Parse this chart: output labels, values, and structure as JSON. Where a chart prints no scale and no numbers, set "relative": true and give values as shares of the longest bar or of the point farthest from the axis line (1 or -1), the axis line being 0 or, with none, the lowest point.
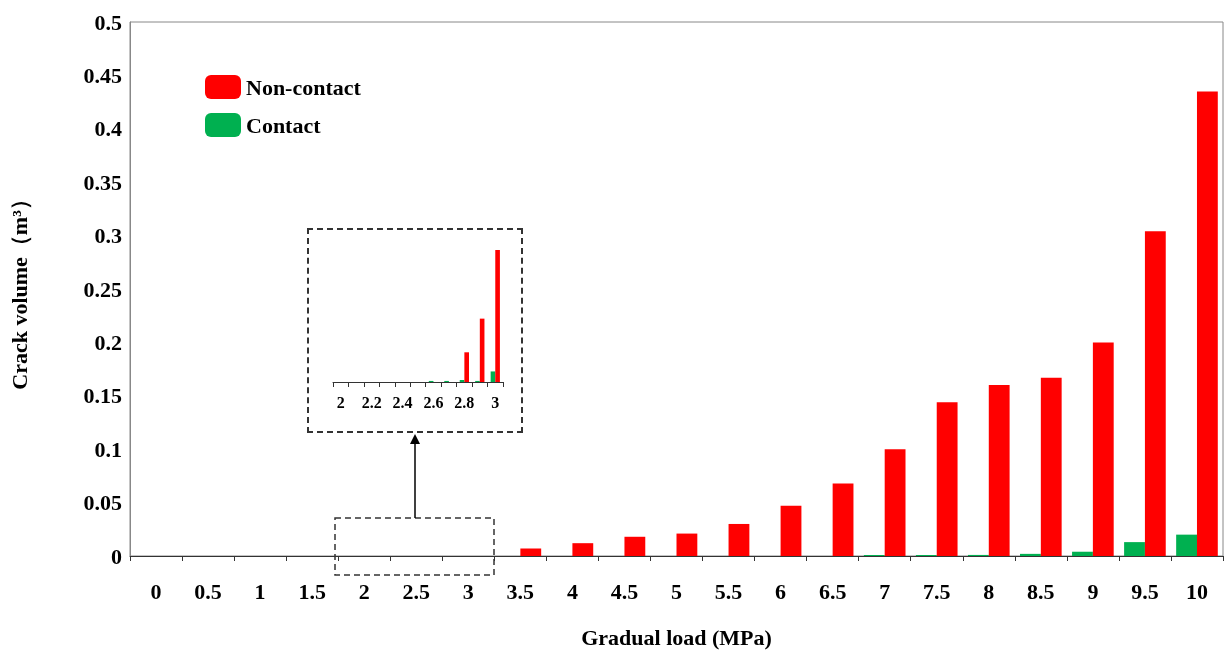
{
  "chart_data": [
    {
      "type": "bar",
      "xlabel": "Gradual load (MPa)",
      "ylabel": "Crack volume（m³）",
      "categories": [
        "0",
        "0.5",
        "1",
        "1.5",
        "2",
        "2.5",
        "3",
        "3.5",
        "4",
        "4.5",
        "5",
        "5.5",
        "6",
        "6.5",
        "7",
        "7.5",
        "8",
        "8.5",
        "9",
        "9.5",
        "10"
      ],
      "series": [
        {
          "name": "Contact",
          "color": "#00b050",
          "values": [
            0,
            0,
            0,
            0,
            0,
            0,
            0,
            0,
            0,
            0,
            0,
            0,
            0,
            0,
            0.001,
            0.001,
            0.001,
            0.002,
            0.004,
            0.013,
            0.02
          ]
        },
        {
          "name": "Non-contact",
          "color": "#ff0000",
          "values": [
            0,
            0,
            0,
            0,
            0,
            0,
            0,
            0.007,
            0.012,
            0.018,
            0.021,
            0.03,
            0.047,
            0.068,
            0.1,
            0.144,
            0.16,
            0.167,
            0.2,
            0.304,
            0.435
          ]
        }
      ],
      "ylim": [
        0,
        0.5
      ],
      "yticks": [
        0,
        0.05,
        0.1,
        0.15,
        0.2,
        0.25,
        0.3,
        0.35,
        0.4,
        0.45,
        0.5
      ],
      "grid": false,
      "legend": "top left"
    },
    {
      "type": "bar",
      "relative": true,
      "categories": [
        "2",
        null,
        "2.2",
        null,
        "2.4",
        null,
        "2.6",
        null,
        "2.8",
        null,
        "3"
      ],
      "series": [
        {
          "color": "#00b050",
          "values": [
            0,
            0,
            0,
            0,
            0,
            0,
            0.008,
            0.008,
            0.015,
            0.008,
            0.08
          ]
        },
        {
          "color": "#ff0000",
          "values": [
            0,
            0,
            0,
            0,
            0,
            0,
            0,
            0,
            0.225,
            0.48,
            1
          ]
        }
      ],
      "legend": false
    }
  ]
}
